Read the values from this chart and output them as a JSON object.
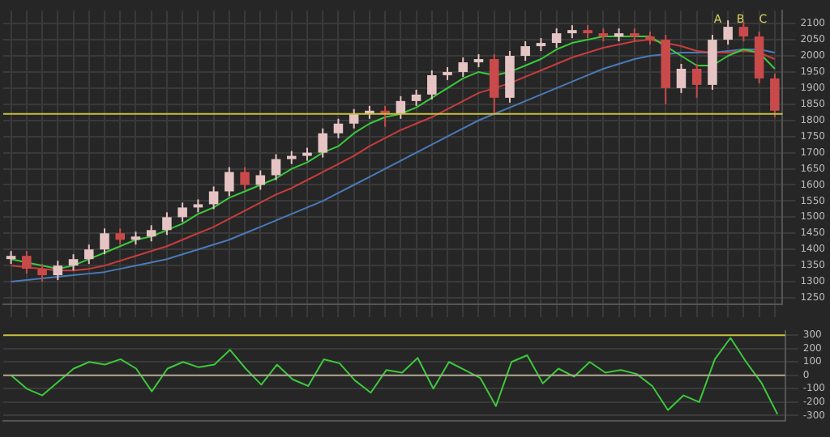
{
  "chart_data": [
    {
      "type": "candlestick",
      "categories": [
        null,
        null,
        null,
        null,
        null,
        null,
        null,
        null,
        null,
        null,
        null,
        null,
        null,
        null,
        null,
        null,
        null,
        null,
        null,
        null,
        null,
        null,
        null,
        null,
        null,
        null,
        null,
        null,
        null,
        null,
        null,
        null,
        null,
        null,
        null,
        null,
        null,
        null,
        null,
        null,
        null,
        null,
        null,
        null,
        null,
        null,
        null,
        null,
        null,
        null
      ],
      "ohlc": [
        [
          1370,
          1395,
          1355,
          1380
        ],
        [
          1380,
          1395,
          1325,
          1340
        ],
        [
          1340,
          1355,
          1300,
          1320
        ],
        [
          1320,
          1365,
          1305,
          1350
        ],
        [
          1350,
          1385,
          1335,
          1370
        ],
        [
          1370,
          1415,
          1355,
          1400
        ],
        [
          1400,
          1465,
          1385,
          1450
        ],
        [
          1450,
          1465,
          1415,
          1430
        ],
        [
          1430,
          1455,
          1415,
          1440
        ],
        [
          1440,
          1475,
          1425,
          1460
        ],
        [
          1460,
          1515,
          1445,
          1500
        ],
        [
          1500,
          1545,
          1485,
          1530
        ],
        [
          1530,
          1555,
          1515,
          1540
        ],
        [
          1540,
          1595,
          1525,
          1580
        ],
        [
          1580,
          1655,
          1565,
          1640
        ],
        [
          1640,
          1655,
          1585,
          1600
        ],
        [
          1600,
          1645,
          1585,
          1630
        ],
        [
          1630,
          1695,
          1615,
          1680
        ],
        [
          1680,
          1705,
          1665,
          1690
        ],
        [
          1690,
          1715,
          1675,
          1700
        ],
        [
          1700,
          1775,
          1685,
          1760
        ],
        [
          1760,
          1805,
          1745,
          1790
        ],
        [
          1790,
          1835,
          1775,
          1820
        ],
        [
          1820,
          1845,
          1805,
          1830
        ],
        [
          1830,
          1845,
          1780,
          1820
        ],
        [
          1820,
          1875,
          1805,
          1860
        ],
        [
          1860,
          1895,
          1845,
          1880
        ],
        [
          1880,
          1955,
          1865,
          1940
        ],
        [
          1940,
          1965,
          1925,
          1950
        ],
        [
          1950,
          1995,
          1935,
          1980
        ],
        [
          1980,
          2005,
          1965,
          1990
        ],
        [
          1990,
          2005,
          1820,
          1870
        ],
        [
          1870,
          2015,
          1855,
          2000
        ],
        [
          2000,
          2045,
          1985,
          2030
        ],
        [
          2030,
          2055,
          2015,
          2040
        ],
        [
          2040,
          2085,
          2025,
          2070
        ],
        [
          2070,
          2095,
          2055,
          2080
        ],
        [
          2080,
          2095,
          2055,
          2070
        ],
        [
          2070,
          2085,
          2045,
          2060
        ],
        [
          2060,
          2085,
          2045,
          2070
        ],
        [
          2070,
          2085,
          2045,
          2060
        ],
        [
          2060,
          2075,
          2035,
          2050
        ],
        [
          2050,
          2065,
          1850,
          1900
        ],
        [
          1900,
          1975,
          1885,
          1960
        ],
        [
          1960,
          1975,
          1870,
          1910
        ],
        [
          1910,
          2065,
          1895,
          2050
        ],
        [
          2050,
          2110,
          2035,
          2090
        ],
        [
          2090,
          2105,
          2045,
          2060
        ],
        [
          2060,
          2075,
          1915,
          1930
        ],
        [
          1930,
          1945,
          1810,
          1830
        ]
      ],
      "colors": [
        "#e6c4c4",
        "#c84a4a",
        "#c84a4a",
        "#e6c4c4",
        "#e6c4c4",
        "#e6c4c4",
        "#e6c4c4",
        "#c84a4a",
        "#e6c4c4",
        "#e6c4c4",
        "#e6c4c4",
        "#e6c4c4",
        "#e6c4c4",
        "#e6c4c4",
        "#e6c4c4",
        "#c84a4a",
        "#e6c4c4",
        "#e6c4c4",
        "#e6c4c4",
        "#e6c4c4",
        "#e6c4c4",
        "#e6c4c4",
        "#e6c4c4",
        "#e6c4c4",
        "#c84a4a",
        "#e6c4c4",
        "#e6c4c4",
        "#e6c4c4",
        "#e6c4c4",
        "#e6c4c4",
        "#e6c4c4",
        "#c84a4a",
        "#e6c4c4",
        "#e6c4c4",
        "#e6c4c4",
        "#e6c4c4",
        "#e6c4c4",
        "#c84a4a",
        "#c84a4a",
        "#e6c4c4",
        "#c84a4a",
        "#c84a4a",
        "#c84a4a",
        "#e6c4c4",
        "#c84a4a",
        "#e6c4c4",
        "#e6c4c4",
        "#c84a4a",
        "#c84a4a",
        "#c84a4a"
      ],
      "series": [
        {
          "type": "line",
          "color": "#3cc83c",
          "values": [
            1370,
            1360,
            1350,
            1340,
            1350,
            1370,
            1390,
            1410,
            1430,
            1440,
            1460,
            1480,
            1510,
            1530,
            1560,
            1580,
            1600,
            1620,
            1650,
            1670,
            1700,
            1720,
            1760,
            1790,
            1810,
            1820,
            1840,
            1870,
            1900,
            1930,
            1950,
            1940,
            1950,
            1970,
            1990,
            2020,
            2040,
            2050,
            2060,
            2060,
            2060,
            2060,
            2030,
            2000,
            1970,
            1970,
            2000,
            2020,
            2010,
            1960
          ]
        },
        {
          "type": "line",
          "color": "#c83c3c",
          "values": [
            1350,
            1345,
            1340,
            1335,
            1335,
            1340,
            1350,
            1365,
            1380,
            1395,
            1410,
            1430,
            1450,
            1470,
            1495,
            1520,
            1545,
            1570,
            1590,
            1615,
            1640,
            1665,
            1690,
            1720,
            1745,
            1770,
            1790,
            1810,
            1835,
            1860,
            1885,
            1900,
            1915,
            1935,
            1955,
            1975,
            1995,
            2010,
            2025,
            2035,
            2045,
            2050,
            2040,
            2030,
            2015,
            2010,
            2010,
            2015,
            2010,
            1990
          ]
        },
        {
          "type": "line",
          "color": "#4a7ab8",
          "values": [
            1300,
            1305,
            1310,
            1315,
            1320,
            1325,
            1330,
            1340,
            1350,
            1360,
            1370,
            1385,
            1400,
            1415,
            1430,
            1450,
            1470,
            1490,
            1510,
            1530,
            1550,
            1575,
            1600,
            1625,
            1650,
            1675,
            1700,
            1725,
            1750,
            1775,
            1800,
            1820,
            1840,
            1860,
            1880,
            1900,
            1920,
            1940,
            1960,
            1975,
            1990,
            2000,
            2005,
            2010,
            2010,
            2010,
            2015,
            2020,
            2020,
            2010
          ]
        }
      ],
      "ref_lines": [
        {
          "axis": "y",
          "value": 1820,
          "color": "#c8c040"
        }
      ],
      "annotations": [
        "A",
        "B",
        "C"
      ],
      "ylim": [
        1230,
        2140
      ],
      "yticks": [
        1250,
        1300,
        1350,
        1400,
        1450,
        1500,
        1550,
        1600,
        1650,
        1700,
        1750,
        1800,
        1850,
        1900,
        1950,
        2000,
        2050,
        2100
      ],
      "grid": true,
      "tick_labels": "y"
    },
    {
      "type": "line",
      "categories": [
        null,
        null,
        null,
        null,
        null,
        null,
        null,
        null,
        null,
        null,
        null,
        null,
        null,
        null,
        null,
        null,
        null,
        null,
        null,
        null,
        null,
        null,
        null,
        null,
        null,
        null,
        null,
        null,
        null,
        null,
        null,
        null,
        null,
        null,
        null,
        null,
        null,
        null,
        null,
        null,
        null,
        null,
        null,
        null,
        null,
        null,
        null,
        null,
        null,
        null
      ],
      "series": [
        {
          "color": "#3cc83c",
          "values": [
            0,
            -100,
            -150,
            -50,
            50,
            100,
            80,
            120,
            50,
            -120,
            50,
            100,
            60,
            80,
            190,
            50,
            -70,
            80,
            -30,
            -80,
            120,
            90,
            -40,
            -130,
            40,
            20,
            130,
            -100,
            100,
            40,
            -20,
            -230,
            100,
            150,
            -60,
            50,
            -10,
            100,
            20,
            40,
            10,
            -80,
            -260,
            -150,
            -200,
            120,
            280,
            100,
            -60,
            -290
          ]
        }
      ],
      "ref_lines": [
        {
          "axis": "y",
          "value": 300,
          "color": "#c8c040"
        },
        {
          "axis": "y",
          "value": 0,
          "color": "#b0a890"
        }
      ],
      "ylim": [
        -340,
        330
      ],
      "yticks": [
        -300,
        -200,
        -100,
        0,
        100,
        200,
        300
      ],
      "grid": "y",
      "tick_labels": "y"
    }
  ]
}
